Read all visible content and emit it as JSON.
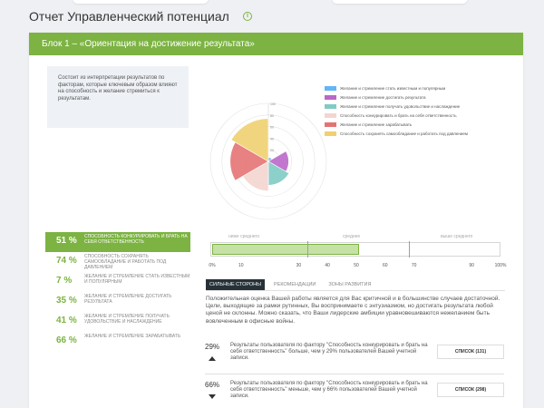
{
  "page": {
    "title": "Отчет Управленческий потенциал",
    "info_icon": "i"
  },
  "block": {
    "title": "Блок 1 – «Ориентация на достижение результата»",
    "description": "Состоит из интерпретации результатов по факторам, которые ключевым образом влияют на способность и желание стремиться к результатам."
  },
  "radar": {
    "scale_labels": [
      "100",
      "80",
      "60",
      "40",
      "20"
    ],
    "colors": [
      "#64b5f6",
      "#ba68c8",
      "#80cbc4",
      "#f4d5d0",
      "#e57373",
      "#f0d070"
    ]
  },
  "legend": [
    {
      "label": "Желание и стремление стать известным и популярным",
      "color": "#64b5f6"
    },
    {
      "label": "Желание и стремление достигать результата",
      "color": "#ba68c8"
    },
    {
      "label": "Желание и стремление получать удовольствие и наслаждение",
      "color": "#80cbc4"
    },
    {
      "label": "Способность конкурировать и брать на себя ответственность",
      "color": "#f4d5d0"
    },
    {
      "label": "Желание и стремление зарабатывать",
      "color": "#e57373"
    },
    {
      "label": "Способность сохранять самообладание и работать под давлением",
      "color": "#f0d070"
    }
  ],
  "scores": [
    {
      "pct": "51 %",
      "label": "СПОСОБНОСТЬ КОНКУРИРОВАТЬ И БРАТЬ НА СЕБЯ ОТВЕТСТВЕННОСТЬ",
      "active": true
    },
    {
      "pct": "74 %",
      "label": "СПОСОБНОСТЬ СОХРАНЯТЬ САМООБЛАДАНИЕ И РАБОТАТЬ ПОД ДАВЛЕНИЕМ",
      "active": false
    },
    {
      "pct": "7 %",
      "label": "ЖЕЛАНИЕ И СТРЕМЛЕНИЕ СТАТЬ ИЗВЕСТНЫМ И ПОПУЛЯРНЫМ",
      "active": false
    },
    {
      "pct": "35 %",
      "label": "ЖЕЛАНИЕ И СТРЕМЛЕНИЕ ДОСТИГАТЬ РЕЗУЛЬТАТА",
      "active": false
    },
    {
      "pct": "41 %",
      "label": "ЖЕЛАНИЕ И СТРЕМЛЕНИЕ ПОЛУЧАТЬ УДОВОЛЬСТВИЕ И НАСЛАЖДЕНИЕ",
      "active": false
    },
    {
      "pct": "66 %",
      "label": "ЖЕЛАНИЕ И СТРЕМЛЕНИЕ ЗАРАБАТЫВАТЬ",
      "active": false
    }
  ],
  "scale": {
    "zones": [
      "ниже среднего",
      "среднее",
      "выше среднего"
    ],
    "ticks": [
      "0%",
      "10",
      "30",
      "40",
      "50",
      "60",
      "70",
      "90",
      "100%"
    ],
    "value_pct": 51
  },
  "tabs": [
    "СИЛЬНЫЕ СТОРОНЫ",
    "РЕКОМЕНДАЦИИ",
    "ЗОНЫ РАЗВИТИЯ"
  ],
  "summary": "Положительная оценка Вашей работы является для Вас критичной и в большинстве случаев достаточной. Цели, выходящие за рамки рутинных, Вы воспринимаете с энтузиазмом, но достигать результата любой ценой не склонны. Можно сказать, что Ваши лидерские амбиции уравновешиваются нежеланием быть вовлеченным в офисные войны.",
  "stats": [
    {
      "pct": "29%",
      "direction": "up",
      "text": "Результаты пользователя по фактору \"Способность конкурировать и брать на себя ответственность\" больше, чем у 29% пользователей Вашей учетной записи.",
      "button": "СПИСОК (131)"
    },
    {
      "pct": "66%",
      "direction": "down",
      "text": "Результаты пользователя по фактору \"Способность конкурировать и брать на себя ответственность\" меньше, чем у 66% пользователей Вашей учетной записи.",
      "button": "СПИСОК (298)"
    }
  ]
}
